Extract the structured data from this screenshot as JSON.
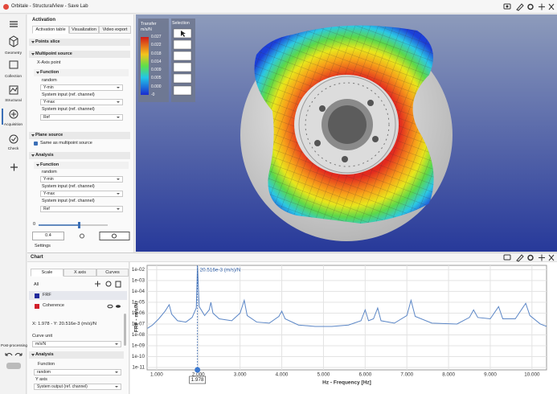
{
  "window": {
    "title": "Orbitale - StructuralView - Save Lab"
  },
  "sidebar": {
    "items": [
      "Geometry",
      "Collection",
      "Structural",
      "Acquisition",
      "Check"
    ],
    "footer": "Post-processing"
  },
  "activation": {
    "title": "Activation",
    "tabs": [
      "Activation table",
      "Visualization",
      "Video export"
    ],
    "points_slice": "Points slice",
    "multipoint": {
      "title": "Multipoint source",
      "x_axis_point": "X-Axis point",
      "function": {
        "title": "Function",
        "type": "random",
        "ymin": "Y-min",
        "ymin_source": "System input (ref. channel)",
        "ymax": "Y-max",
        "ymax_source": "System input (ref. channel)",
        "ref": "Ref"
      }
    },
    "plane": {
      "title": "Plane source",
      "same": "Same as multipoint source",
      "analysis": "Analysis",
      "function": {
        "title": "Function",
        "type": "random",
        "ymin": "Y-min",
        "ymin_source": "System input (ref. channel)",
        "ymax": "Y-max",
        "ymax_source": "System input (ref. channel)",
        "ref": "Ref"
      }
    },
    "slider": {
      "min": "0",
      "value": "0.4"
    },
    "settings": "Settings"
  },
  "view": {
    "legend": {
      "title": "Transfer",
      "unit": "m/s/N",
      "labels": [
        "0.027",
        "0.022",
        "0.018",
        "0.014",
        "0.009",
        "0.005",
        "0.000",
        "-0"
      ]
    },
    "toolbar": "Selection"
  },
  "chart_panel": {
    "title": "Chart",
    "tabs": [
      "Scale",
      "X axis",
      "Curves"
    ],
    "all": "All",
    "curves": [
      "FRF",
      "Coherence"
    ],
    "readout": "X: 1.978 - Y: 20.516e-3 (m/s)/N",
    "curve_unit": "Curve unit",
    "unit": "m/s/N",
    "analysis": "Analysis",
    "function": "Function",
    "function_type": "random",
    "y_axis": "Y axis",
    "y_axis_source": "System output (ref. channel)"
  },
  "chart_data": {
    "type": "line",
    "log_y": true,
    "grid": true,
    "x_label": "Hz - Frequency [Hz]",
    "y_label": "FRF - m/s/N",
    "x": [
      0.78,
      0.9,
      1.05,
      1.2,
      1.3,
      1.36,
      1.5,
      1.7,
      1.85,
      1.95,
      1.978,
      2.02,
      2.15,
      2.26,
      2.3,
      2.35,
      2.5,
      2.8,
      3.0,
      3.1,
      3.17,
      3.4,
      3.7,
      3.93,
      4.0,
      4.08,
      4.4,
      4.8,
      5.2,
      5.6,
      5.9,
      6.0,
      6.08,
      6.2,
      6.3,
      6.38,
      6.7,
      7.0,
      7.1,
      7.2,
      7.6,
      8.2,
      8.5,
      8.6,
      8.7,
      9.0,
      9.2,
      9.3,
      9.6,
      9.85,
      9.95,
      10.2,
      10.35
    ],
    "series": [
      {
        "color": "#5b86c6",
        "values": [
          4e-08,
          8e-08,
          3e-07,
          1.5e-06,
          6e-06,
          8e-07,
          2e-07,
          1.5e-07,
          4e-07,
          3e-06,
          0.020516,
          4e-06,
          6e-07,
          2e-06,
          1e-05,
          1e-06,
          3e-07,
          2e-07,
          1e-06,
          1.5e-05,
          6e-07,
          1.5e-07,
          1.2e-07,
          5e-07,
          1.5e-06,
          3e-07,
          8e-08,
          6e-08,
          6e-08,
          8e-08,
          2e-07,
          2e-06,
          2e-07,
          3e-07,
          3e-06,
          2e-07,
          1.2e-07,
          6e-07,
          1.5e-05,
          5e-07,
          1.2e-07,
          1e-07,
          4e-07,
          2e-06,
          4e-07,
          3e-07,
          4e-06,
          3e-07,
          3e-07,
          8e-06,
          6e-07,
          1e-07,
          6e-08
        ]
      }
    ],
    "xlim": [
      0.77,
      10.35
    ],
    "ylim": [
      6e-12,
      0.025
    ],
    "xticks": [
      {
        "value": 1,
        "label": "1.000"
      },
      {
        "value": 2,
        "label": "2.000"
      },
      {
        "value": 3,
        "label": "3.000"
      },
      {
        "value": 4,
        "label": "4.000"
      },
      {
        "value": 5,
        "label": "5.000"
      },
      {
        "value": 6,
        "label": "6.000"
      },
      {
        "value": 7,
        "label": "7.000"
      },
      {
        "value": 8,
        "label": "8.000"
      },
      {
        "value": 9,
        "label": "9.000"
      },
      {
        "value": 10,
        "label": "10.000"
      }
    ],
    "yticks": [
      {
        "value": 0.01,
        "label": "1e-02"
      },
      {
        "value": 0.001,
        "label": "1e-03"
      },
      {
        "value": 0.0001,
        "label": "1e-04"
      },
      {
        "value": 1e-05,
        "label": "1e-05"
      },
      {
        "value": 1e-06,
        "label": "1e-06"
      },
      {
        "value": 1e-07,
        "label": "1e-07"
      },
      {
        "value": 1e-08,
        "label": "1e-08"
      },
      {
        "value": 1e-09,
        "label": "1e-09"
      },
      {
        "value": 1e-10,
        "label": "1e-10"
      },
      {
        "value": 1e-11,
        "label": "1e-11"
      }
    ],
    "cursor": {
      "x": 1.978,
      "label": "20.516e-3 (m/s)/N"
    }
  }
}
